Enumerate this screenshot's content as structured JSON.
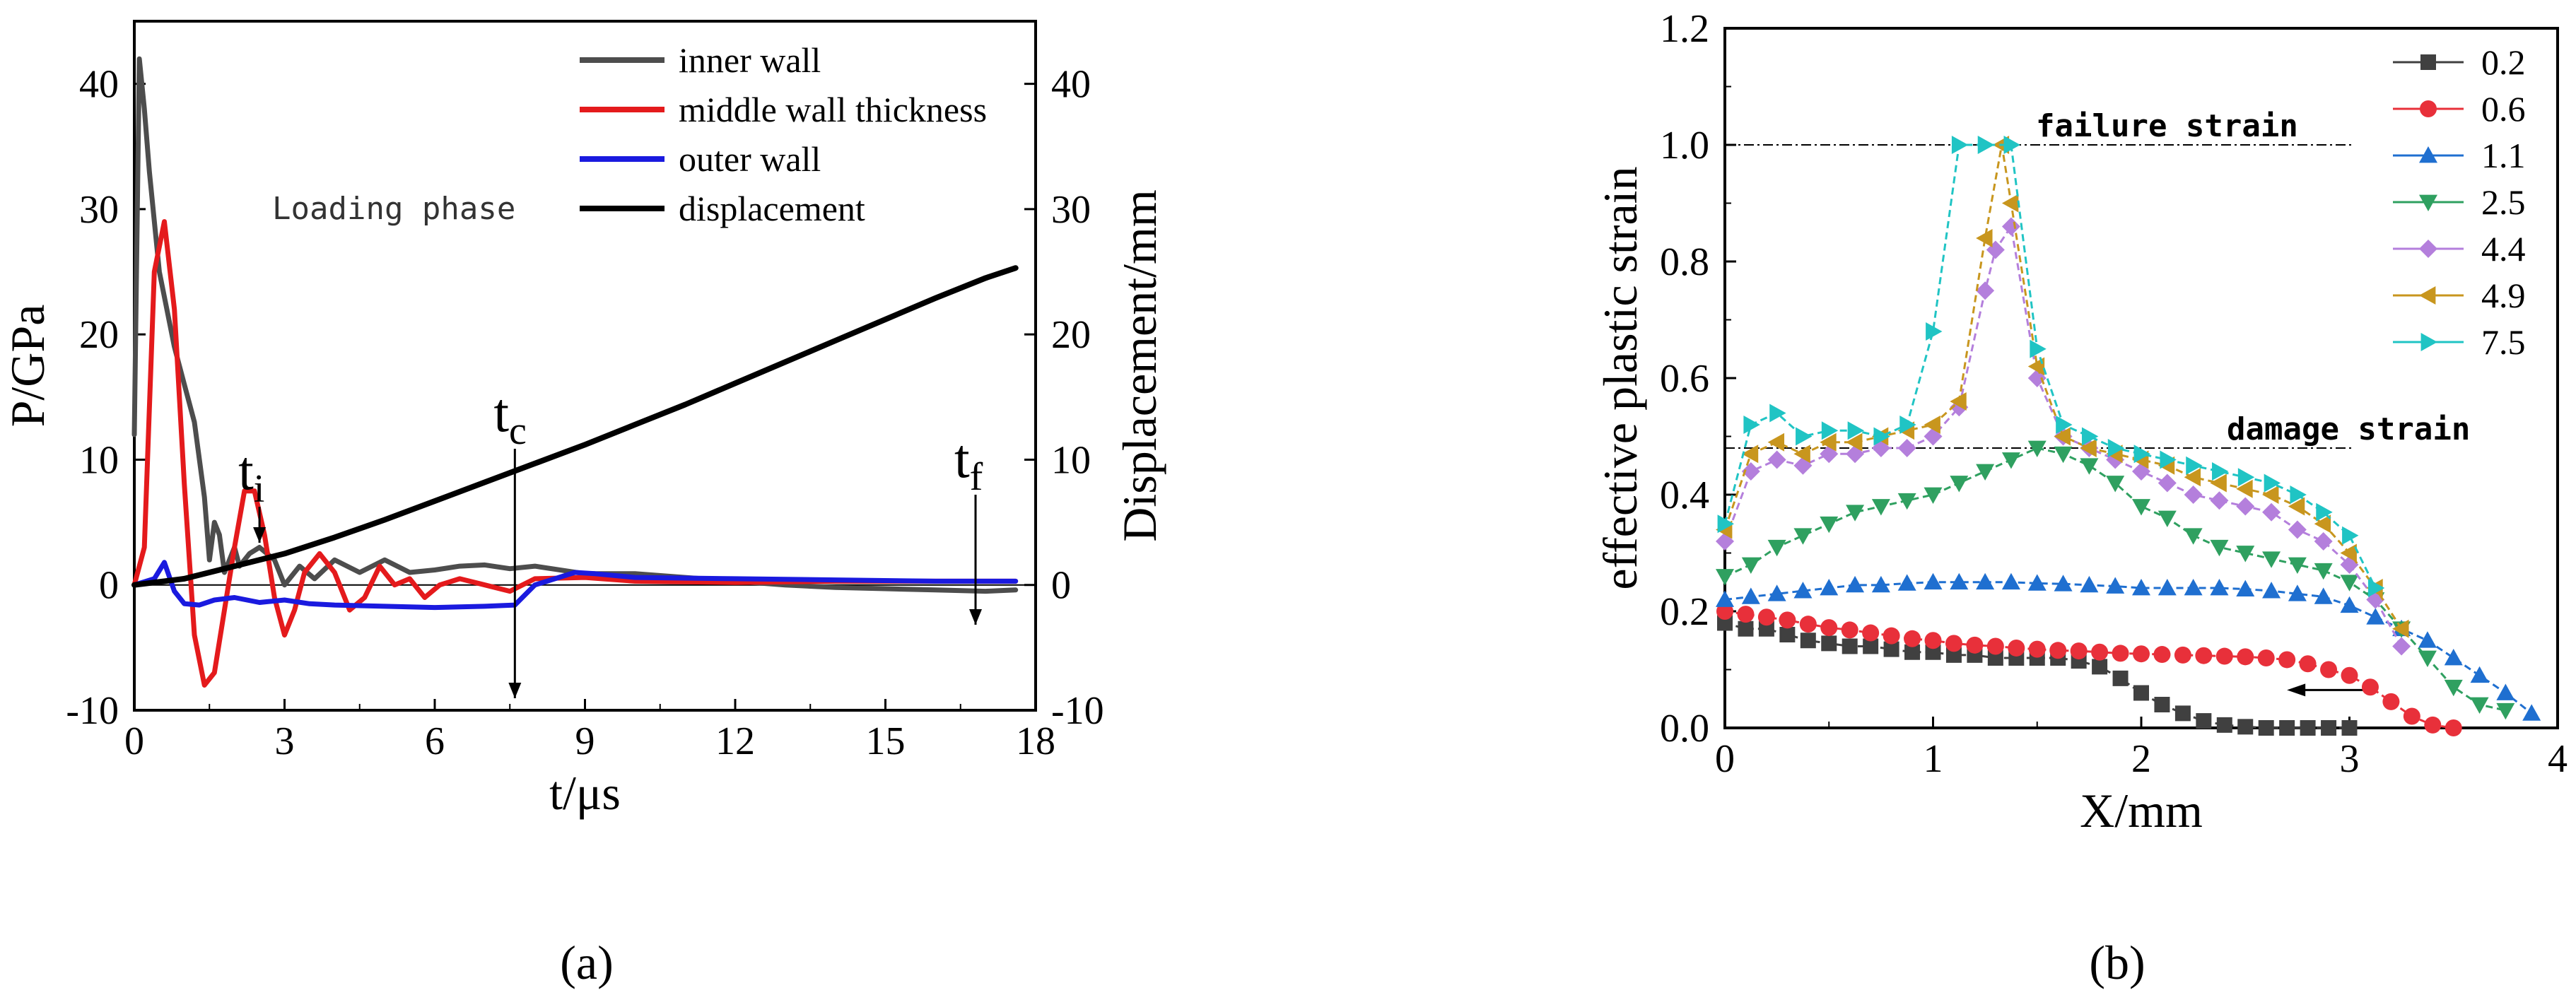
{
  "colors": {
    "inner": "#4d4d4d",
    "middle": "#e41a1c",
    "outer": "#1a1adf",
    "displacement": "#000000",
    "s02": "#404040",
    "s06": "#e8303a",
    "s11": "#1f6fd0",
    "s25": "#2fa060",
    "s44": "#b47fdc",
    "s49": "#c8961e",
    "s75": "#20c4c4"
  },
  "panel_labels": {
    "a": "(a)",
    "b": "(b)"
  },
  "chart_data": [
    {
      "type": "line",
      "xlabel": "t/μs",
      "ylabel": "P/GPa",
      "y2label": "Displacement/mm",
      "xlim": [
        0,
        18
      ],
      "ylim": [
        -10,
        45
      ],
      "y2lim": [
        -10,
        45
      ],
      "xticks": [
        "0",
        "3",
        "6",
        "9",
        "12",
        "15",
        "18"
      ],
      "yticks": [
        "-10",
        "0",
        "10",
        "20",
        "30",
        "40"
      ],
      "y2ticks": [
        "-10",
        "0",
        "10",
        "20",
        "30",
        "40"
      ],
      "annotation": "Loading phase",
      "markers": [
        {
          "base": "t",
          "sub": "i",
          "t": 2.5
        },
        {
          "base": "t",
          "sub": "c",
          "t": 7.6
        },
        {
          "base": "t",
          "sub": "f",
          "t": 16.8
        }
      ],
      "series": [
        {
          "name": "inner wall",
          "color_key": "inner",
          "x": [
            0,
            0.1,
            0.2,
            0.3,
            0.5,
            0.8,
            1.0,
            1.2,
            1.4,
            1.5,
            1.6,
            1.7,
            1.8,
            1.9,
            2.0,
            2.1,
            2.3,
            2.5,
            2.8,
            3.0,
            3.3,
            3.6,
            4.0,
            4.5,
            5.0,
            5.5,
            6.0,
            6.5,
            7.0,
            7.5,
            8.0,
            9.0,
            10.0,
            11.0,
            12.0,
            13.0,
            14.0,
            15.0,
            16.0,
            17.0,
            17.6
          ],
          "y": [
            12,
            42,
            38,
            33,
            25,
            19,
            16,
            13,
            7,
            2,
            5,
            4,
            1,
            2,
            3,
            1.5,
            2.5,
            3,
            2,
            0,
            1.5,
            0.5,
            2,
            1,
            2,
            1,
            1.2,
            1.5,
            1.6,
            1.3,
            1.5,
            0.9,
            0.9,
            0.6,
            0.3,
            0,
            -0.2,
            -0.3,
            -0.4,
            -0.5,
            -0.4
          ]
        },
        {
          "name": "middle wall thickness",
          "color_key": "middle",
          "x": [
            0,
            0.2,
            0.4,
            0.6,
            0.8,
            1.0,
            1.2,
            1.4,
            1.6,
            1.8,
            2.0,
            2.2,
            2.4,
            2.6,
            2.8,
            3.0,
            3.2,
            3.4,
            3.7,
            4.0,
            4.3,
            4.6,
            4.9,
            5.2,
            5.5,
            5.8,
            6.1,
            6.5,
            7.0,
            7.5,
            8.0,
            9.0,
            10.0,
            12.0,
            14.0,
            16.0,
            17.6
          ],
          "y": [
            0,
            3,
            25,
            29,
            22,
            8,
            -4,
            -8,
            -7,
            -2,
            3,
            7.5,
            7.5,
            4,
            -1,
            -4,
            -2,
            1,
            2.5,
            1,
            -2,
            -1,
            1.5,
            0,
            0.5,
            -1,
            0,
            0.5,
            0,
            -0.5,
            0.5,
            0.6,
            0.3,
            0.2,
            0.3,
            0.3,
            0.3
          ]
        },
        {
          "name": "outer wall",
          "color_key": "outer",
          "x": [
            0,
            0.4,
            0.6,
            0.8,
            1.0,
            1.3,
            1.6,
            2.0,
            2.5,
            3.0,
            3.5,
            4.0,
            5.0,
            6.0,
            7.0,
            7.6,
            8.0,
            8.4,
            8.8,
            9.2,
            10.0,
            12.0,
            14.0,
            16.0,
            17.6
          ],
          "y": [
            0,
            0.5,
            1.8,
            -0.5,
            -1.5,
            -1.6,
            -1.2,
            -1.0,
            -1.4,
            -1.2,
            -1.5,
            -1.6,
            -1.7,
            -1.8,
            -1.7,
            -1.6,
            0,
            0.5,
            1.0,
            0.9,
            0.6,
            0.5,
            0.4,
            0.3,
            0.3
          ]
        },
        {
          "name": "displacement",
          "color_key": "displacement",
          "axis": "right",
          "x": [
            0,
            1,
            2,
            3,
            4,
            5,
            6,
            7,
            8,
            9,
            10,
            11,
            12,
            13,
            14,
            15,
            16,
            17,
            17.6
          ],
          "y": [
            0,
            0.5,
            1.5,
            2.5,
            3.8,
            5.2,
            6.7,
            8.2,
            9.7,
            11.2,
            12.8,
            14.4,
            16.1,
            17.8,
            19.5,
            21.2,
            22.9,
            24.5,
            25.3
          ]
        }
      ],
      "legend": [
        "inner wall",
        "middle wall thickness",
        "outer wall",
        "displacement"
      ],
      "legend_placement": "top-right"
    },
    {
      "type": "line",
      "xlabel": "X/mm",
      "ylabel": "effective plastic strain",
      "xlim": [
        0,
        4
      ],
      "ylim": [
        0,
        1.2
      ],
      "xticks": [
        "0",
        "1",
        "2",
        "3",
        "4"
      ],
      "yticks": [
        "0.0",
        "0.2",
        "0.4",
        "0.6",
        "0.8",
        "1.0",
        "1.2"
      ],
      "reference_lines": [
        {
          "label": "failure strain",
          "y": 1.0
        },
        {
          "label": "damage strain",
          "y": 0.48
        }
      ],
      "legend_placement": "top-right",
      "series": [
        {
          "name": "0.2",
          "marker": "square",
          "color_key": "s02",
          "x": [
            0,
            0.1,
            0.2,
            0.3,
            0.4,
            0.5,
            0.6,
            0.7,
            0.8,
            0.9,
            1.0,
            1.1,
            1.2,
            1.3,
            1.4,
            1.5,
            1.6,
            1.7,
            1.8,
            1.9,
            2.0,
            2.1,
            2.2,
            2.3,
            2.4,
            2.5,
            2.6,
            2.7,
            2.8,
            2.9,
            3.0
          ],
          "y": [
            0.18,
            0.17,
            0.17,
            0.16,
            0.15,
            0.145,
            0.14,
            0.14,
            0.135,
            0.13,
            0.13,
            0.125,
            0.125,
            0.12,
            0.12,
            0.12,
            0.12,
            0.115,
            0.105,
            0.085,
            0.06,
            0.04,
            0.025,
            0.012,
            0.005,
            0.002,
            0.0,
            0.0,
            0.0,
            0.0,
            0.0
          ]
        },
        {
          "name": "0.6",
          "marker": "circle",
          "color_key": "s06",
          "x": [
            0,
            0.1,
            0.2,
            0.3,
            0.4,
            0.5,
            0.6,
            0.7,
            0.8,
            0.9,
            1.0,
            1.1,
            1.2,
            1.3,
            1.4,
            1.5,
            1.6,
            1.7,
            1.8,
            1.9,
            2.0,
            2.1,
            2.2,
            2.3,
            2.4,
            2.5,
            2.6,
            2.7,
            2.8,
            2.9,
            3.0,
            3.1,
            3.2,
            3.3,
            3.4,
            3.5
          ],
          "y": [
            0.2,
            0.195,
            0.19,
            0.185,
            0.178,
            0.172,
            0.168,
            0.163,
            0.158,
            0.153,
            0.15,
            0.145,
            0.142,
            0.14,
            0.137,
            0.135,
            0.133,
            0.132,
            0.13,
            0.128,
            0.127,
            0.126,
            0.125,
            0.124,
            0.123,
            0.122,
            0.12,
            0.117,
            0.11,
            0.1,
            0.09,
            0.07,
            0.045,
            0.02,
            0.005,
            0.0
          ]
        },
        {
          "name": "1.1",
          "marker": "triangle-up",
          "color_key": "s11",
          "x": [
            0,
            0.125,
            0.25,
            0.375,
            0.5,
            0.625,
            0.75,
            0.875,
            1.0,
            1.125,
            1.25,
            1.375,
            1.5,
            1.625,
            1.75,
            1.875,
            2.0,
            2.125,
            2.25,
            2.375,
            2.5,
            2.625,
            2.75,
            2.875,
            3.0,
            3.125,
            3.25,
            3.375,
            3.5,
            3.625,
            3.75,
            3.875
          ],
          "y": [
            0.22,
            0.225,
            0.23,
            0.235,
            0.24,
            0.245,
            0.245,
            0.248,
            0.25,
            0.25,
            0.25,
            0.25,
            0.248,
            0.247,
            0.245,
            0.243,
            0.24,
            0.24,
            0.24,
            0.24,
            0.238,
            0.235,
            0.23,
            0.225,
            0.21,
            0.19,
            0.17,
            0.15,
            0.12,
            0.09,
            0.06,
            0.025
          ]
        },
        {
          "name": "2.5",
          "marker": "triangle-down",
          "color_key": "s25",
          "x": [
            0,
            0.125,
            0.25,
            0.375,
            0.5,
            0.625,
            0.75,
            0.875,
            1.0,
            1.125,
            1.25,
            1.375,
            1.5,
            1.625,
            1.75,
            1.875,
            2.0,
            2.125,
            2.25,
            2.375,
            2.5,
            2.625,
            2.75,
            2.875,
            3.0,
            3.125,
            3.25,
            3.375,
            3.5,
            3.625,
            3.75
          ],
          "y": [
            0.26,
            0.28,
            0.31,
            0.33,
            0.35,
            0.37,
            0.38,
            0.39,
            0.4,
            0.42,
            0.44,
            0.46,
            0.48,
            0.47,
            0.45,
            0.42,
            0.38,
            0.36,
            0.33,
            0.31,
            0.3,
            0.29,
            0.28,
            0.27,
            0.25,
            0.22,
            0.17,
            0.12,
            0.07,
            0.04,
            0.03
          ]
        },
        {
          "name": "4.4",
          "marker": "diamond",
          "color_key": "s44",
          "x": [
            0,
            0.125,
            0.25,
            0.375,
            0.5,
            0.625,
            0.75,
            0.875,
            1.0,
            1.125,
            1.25,
            1.3,
            1.375,
            1.5,
            1.625,
            1.75,
            1.875,
            2.0,
            2.125,
            2.25,
            2.375,
            2.5,
            2.625,
            2.75,
            2.875,
            3.0,
            3.125,
            3.25
          ],
          "y": [
            0.32,
            0.44,
            0.46,
            0.45,
            0.47,
            0.47,
            0.48,
            0.48,
            0.5,
            0.55,
            0.75,
            0.82,
            0.86,
            0.6,
            0.5,
            0.48,
            0.46,
            0.44,
            0.42,
            0.4,
            0.39,
            0.38,
            0.37,
            0.34,
            0.32,
            0.28,
            0.22,
            0.14
          ]
        },
        {
          "name": "4.9",
          "marker": "triangle-left",
          "color_key": "s49",
          "x": [
            0,
            0.125,
            0.25,
            0.375,
            0.5,
            0.625,
            0.75,
            0.875,
            1.0,
            1.125,
            1.25,
            1.33,
            1.375,
            1.5,
            1.625,
            1.75,
            1.875,
            2.0,
            2.125,
            2.25,
            2.375,
            2.5,
            2.625,
            2.75,
            2.875,
            3.0,
            3.125,
            3.25
          ],
          "y": [
            0.34,
            0.47,
            0.49,
            0.47,
            0.49,
            0.49,
            0.5,
            0.51,
            0.52,
            0.56,
            0.84,
            1.0,
            0.9,
            0.62,
            0.5,
            0.48,
            0.47,
            0.46,
            0.45,
            0.43,
            0.42,
            0.41,
            0.4,
            0.38,
            0.35,
            0.3,
            0.24,
            0.17
          ]
        },
        {
          "name": "7.5",
          "marker": "triangle-right",
          "color_key": "s75",
          "x": [
            0,
            0.125,
            0.25,
            0.375,
            0.5,
            0.625,
            0.75,
            0.875,
            1.0,
            1.125,
            1.25,
            1.375,
            1.5,
            1.625,
            1.75,
            1.875,
            2.0,
            2.125,
            2.25,
            2.375,
            2.5,
            2.625,
            2.75,
            2.875,
            3.0,
            3.125
          ],
          "y": [
            0.35,
            0.52,
            0.54,
            0.5,
            0.51,
            0.51,
            0.5,
            0.52,
            0.68,
            1.0,
            1.0,
            1.0,
            0.65,
            0.52,
            0.5,
            0.48,
            0.47,
            0.46,
            0.45,
            0.44,
            0.43,
            0.42,
            0.4,
            0.37,
            0.33,
            0.24
          ]
        }
      ],
      "arrow_label": ""
    }
  ]
}
